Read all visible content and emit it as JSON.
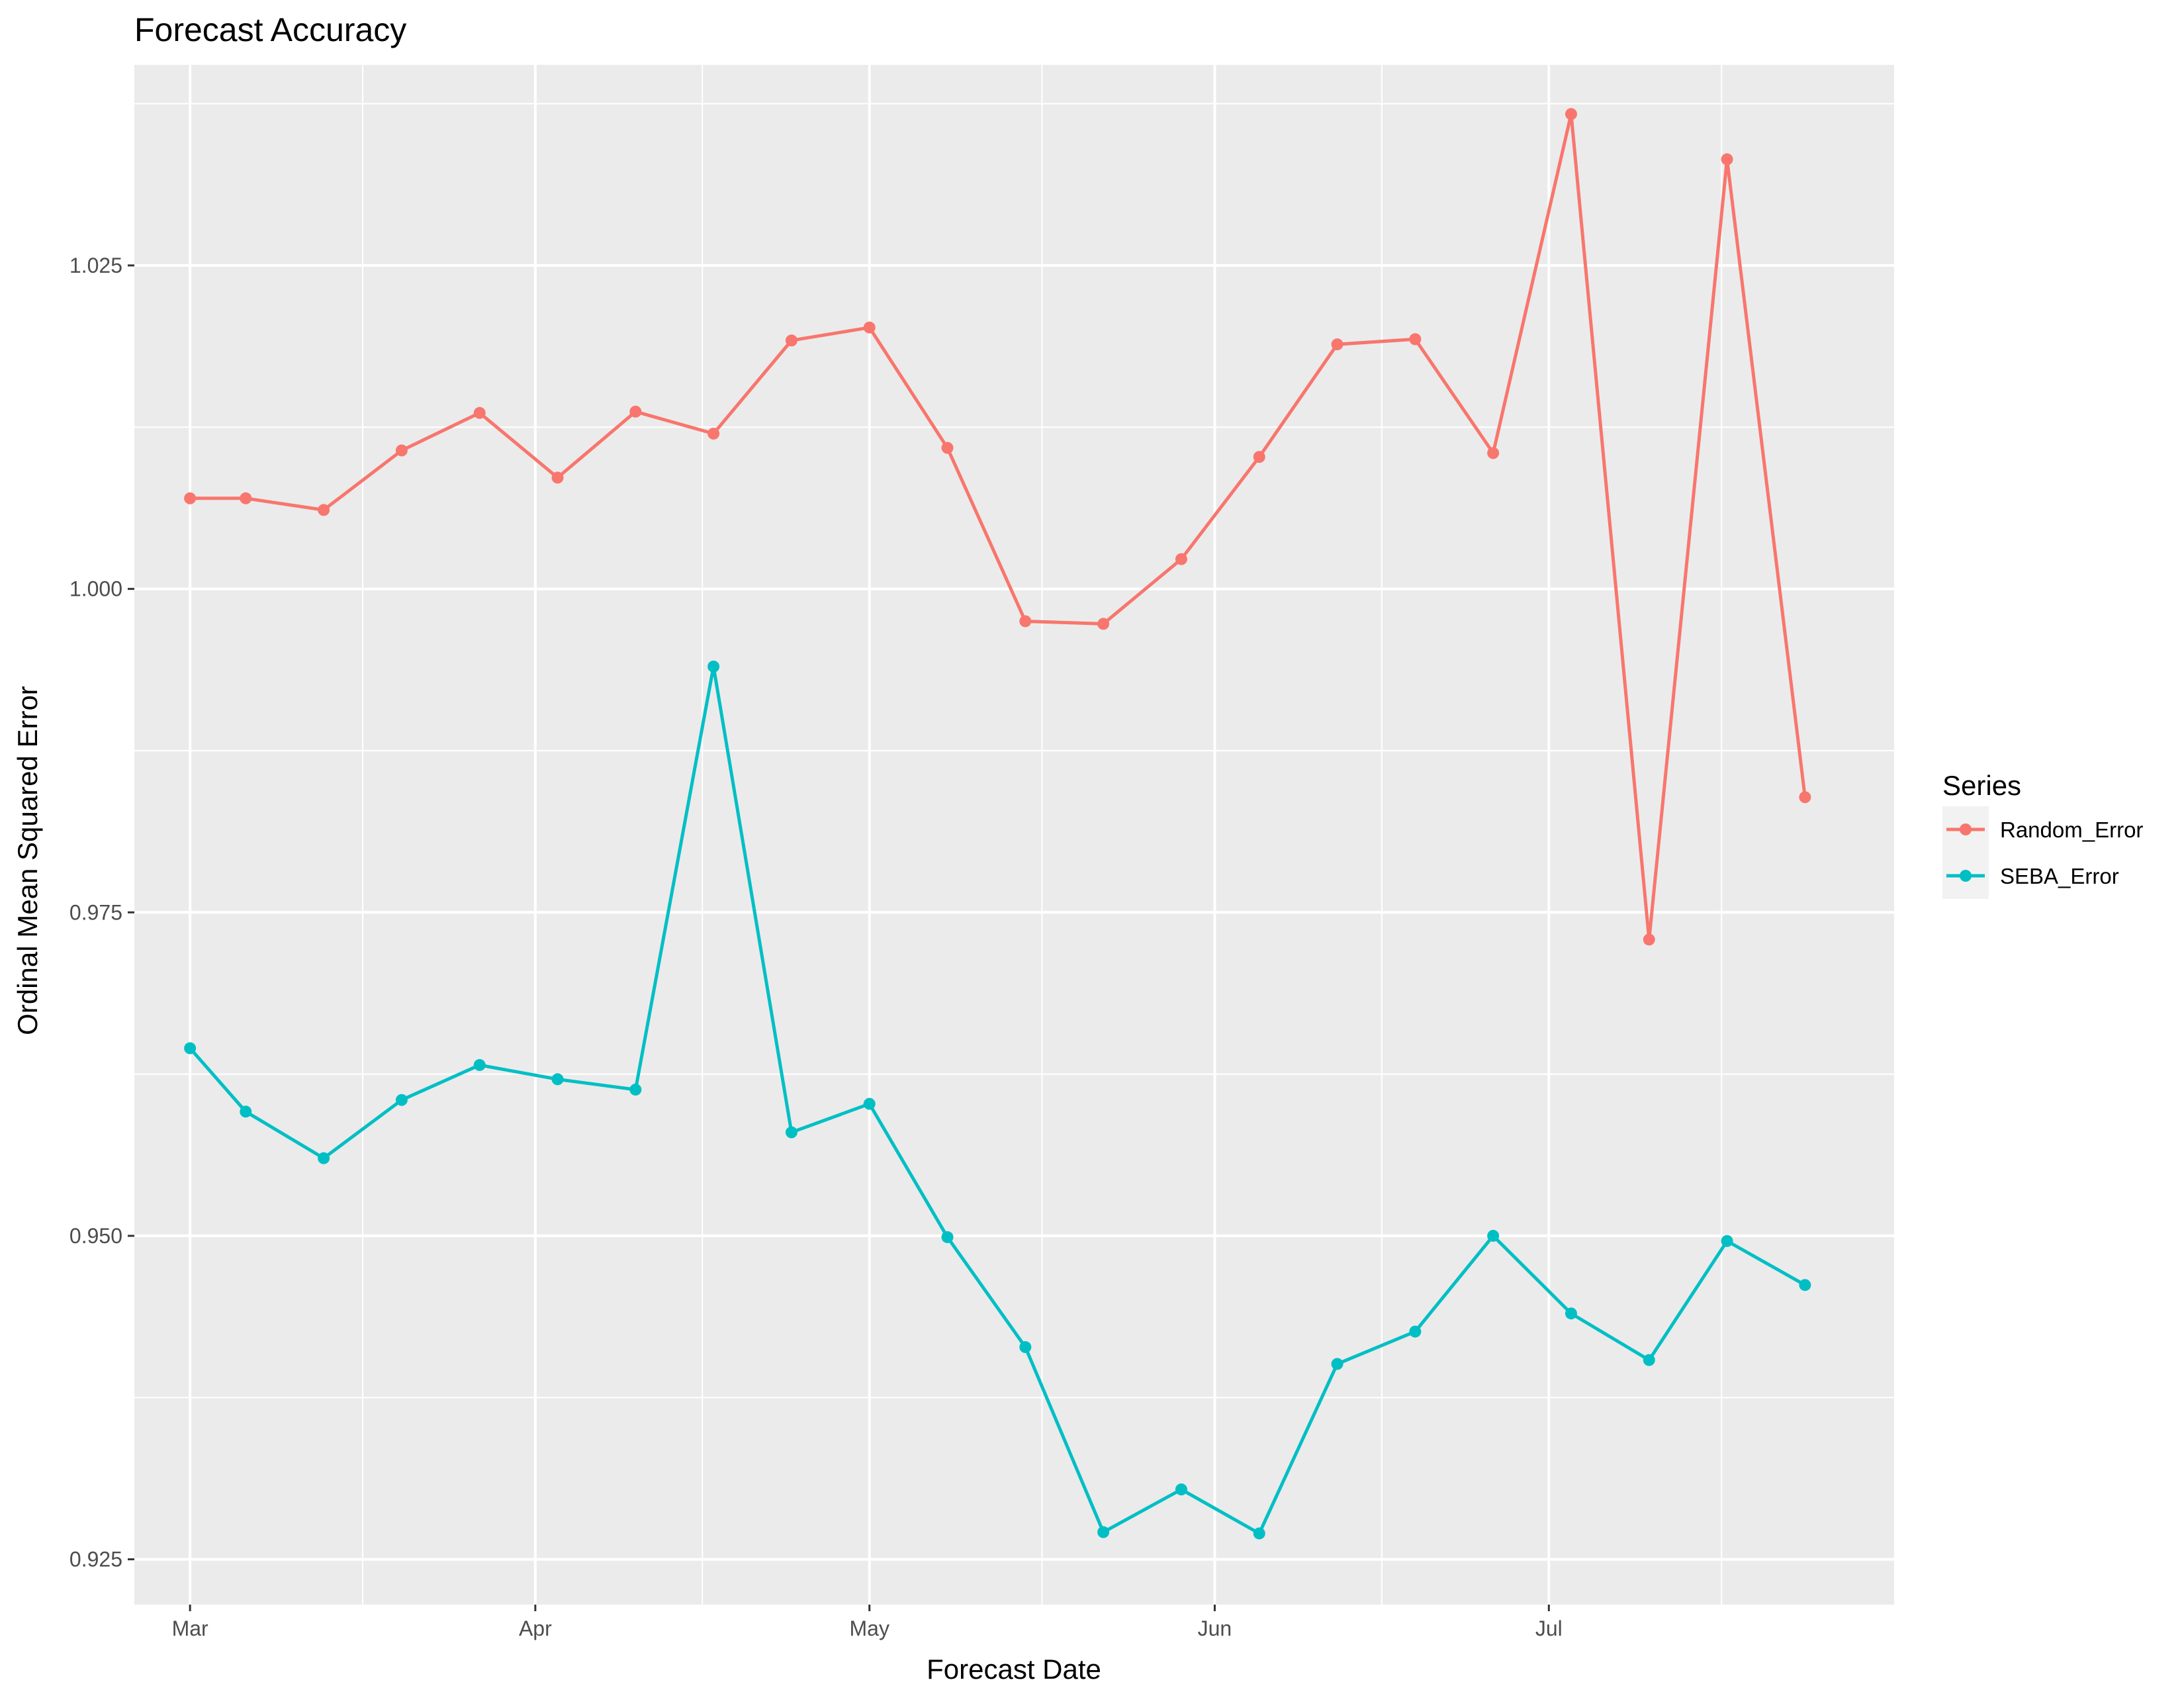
{
  "chart_data": {
    "type": "line",
    "title": "Forecast Accuracy",
    "xlabel": "Forecast Date",
    "ylabel": "Ordinal Mean Squared Error",
    "x_tick_labels": [
      "Mar",
      "Apr",
      "May",
      "Jun",
      "Jul"
    ],
    "x_ticks": [
      "2017-03-01",
      "2017-04-01",
      "2017-05-01",
      "2017-06-01",
      "2017-07-01"
    ],
    "y_ticks": [
      0.925,
      0.95,
      0.975,
      1.0,
      1.025
    ],
    "y_tick_labels": [
      "0.925",
      "0.950",
      "0.975",
      "1.000",
      "1.025"
    ],
    "xlim": [
      "2017-02-24",
      "2017-08-01"
    ],
    "ylim": [
      0.9215,
      1.0405
    ],
    "grid": true,
    "legend": {
      "title": "Series",
      "position": "right"
    },
    "x": [
      "2017-03-01",
      "2017-03-06",
      "2017-03-13",
      "2017-03-20",
      "2017-03-27",
      "2017-04-03",
      "2017-04-10",
      "2017-04-17",
      "2017-04-24",
      "2017-05-01",
      "2017-05-08",
      "2017-05-15",
      "2017-05-22",
      "2017-05-29",
      "2017-06-05",
      "2017-06-12",
      "2017-06-19",
      "2017-06-26",
      "2017-07-03",
      "2017-07-10",
      "2017-07-17",
      "2017-07-24"
    ],
    "series": [
      {
        "name": "Random_Error",
        "color": "#F8766D",
        "values": [
          1.007,
          1.007,
          1.0061,
          1.0107,
          1.0136,
          1.0086,
          1.0137,
          1.012,
          1.0192,
          1.0202,
          1.0109,
          0.9975,
          0.9973,
          1.0023,
          1.0102,
          1.0189,
          1.0193,
          1.0105,
          1.0367,
          0.9729,
          1.0332,
          0.9839
        ]
      },
      {
        "name": "SEBA_Error",
        "color": "#00BFC4",
        "values": [
          0.9645,
          0.9596,
          0.956,
          0.9605,
          0.9632,
          0.9621,
          0.9613,
          0.994,
          0.958,
          0.9602,
          0.9499,
          0.9414,
          0.9271,
          0.9304,
          0.927,
          0.9401,
          0.9426,
          0.95,
          0.944,
          0.9404,
          0.9496,
          0.9462
        ]
      }
    ]
  }
}
